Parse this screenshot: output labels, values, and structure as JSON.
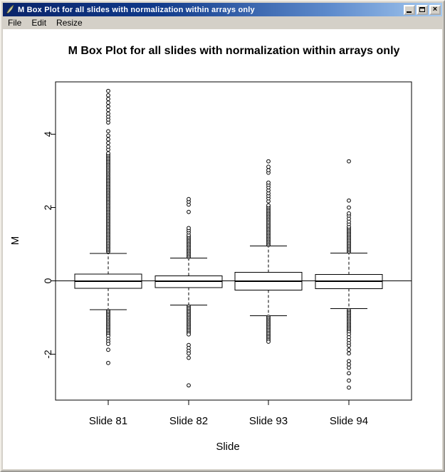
{
  "window": {
    "title": "M Box Plot for all slides with normalization within arrays only",
    "icon": "quill-feather",
    "controls": {
      "minimize": "minimize-bar",
      "maximize": "square-outline",
      "close": "×"
    },
    "menu": [
      {
        "label": "File"
      },
      {
        "label": "Edit"
      },
      {
        "label": "Resize"
      }
    ]
  },
  "chart_data": {
    "type": "boxplot",
    "title": "M Box Plot for all slides with normalization within arrays only",
    "xlabel": "Slide",
    "ylabel": "M",
    "categories": [
      "Slide 81",
      "Slide 82",
      "Slide 93",
      "Slide 94"
    ],
    "yticks": [
      -2,
      0,
      2,
      4
    ],
    "ylim": [
      -3.25,
      5.43
    ],
    "grid": false,
    "legend": "none",
    "reference_line_y": 0,
    "series": [
      {
        "name": "Slide 81",
        "whisker_low": -0.79,
        "q1": -0.2,
        "median": -0.01,
        "q3": 0.18,
        "whisker_high": 0.75,
        "outlier_runs": [
          [
            0.8,
            3.5
          ],
          [
            -0.82,
            -1.52
          ]
        ],
        "outliers": [
          3.58,
          3.66,
          3.76,
          3.86,
          3.96,
          4.08,
          4.32,
          4.4,
          4.48,
          4.56,
          4.66,
          4.76,
          4.86,
          4.96,
          5.06,
          5.18,
          -1.58,
          -1.65,
          -1.72,
          -1.88,
          -2.24
        ]
      },
      {
        "name": "Slide 82",
        "whisker_low": -0.66,
        "q1": -0.18,
        "median": -0.01,
        "q3": 0.14,
        "whisker_high": 0.62,
        "outlier_runs": [
          [
            0.65,
            1.26
          ],
          [
            -0.7,
            -1.5
          ]
        ],
        "outliers": [
          1.32,
          1.38,
          1.44,
          1.88,
          2.08,
          2.16,
          2.23,
          -1.75,
          -1.83,
          -1.91,
          -1.98,
          -2.1,
          -2.85
        ]
      },
      {
        "name": "Slide 93",
        "whisker_low": -0.95,
        "q1": -0.25,
        "median": -0.01,
        "q3": 0.23,
        "whisker_high": 0.95,
        "outlier_runs": [
          [
            0.98,
            2.1
          ],
          [
            -0.98,
            -1.7
          ]
        ],
        "outliers": [
          2.17,
          2.25,
          2.32,
          2.39,
          2.47,
          2.55,
          2.62,
          2.68,
          2.95,
          3.02,
          3.11,
          3.26
        ]
      },
      {
        "name": "Slide 94",
        "whisker_low": -0.76,
        "q1": -0.21,
        "median": -0.01,
        "q3": 0.17,
        "whisker_high": 0.76,
        "outlier_runs": [
          [
            0.8,
            1.5
          ],
          [
            -0.8,
            -1.42
          ]
        ],
        "outliers": [
          1.55,
          1.62,
          1.7,
          1.78,
          1.84,
          2.0,
          2.19,
          3.26,
          -1.46,
          -1.54,
          -1.62,
          -1.7,
          -1.77,
          -1.88,
          -1.98,
          -2.19,
          -2.28,
          -2.37,
          -2.52,
          -2.72,
          -2.91
        ]
      }
    ]
  }
}
